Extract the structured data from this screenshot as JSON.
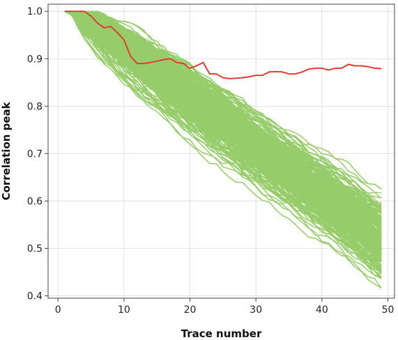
{
  "chart_data": {
    "type": "line",
    "title": "",
    "xlabel": "Trace number",
    "ylabel": "Correlation peak",
    "xlim": [
      -1.5,
      51
    ],
    "ylim": [
      0.395,
      1.015
    ],
    "xticks": [
      0,
      10,
      20,
      30,
      40,
      50
    ],
    "yticks": [
      0.4,
      0.5,
      0.6,
      0.7,
      0.8,
      0.9,
      1.0
    ],
    "xtick_labels": [
      "0",
      "10",
      "20",
      "30",
      "40",
      "50"
    ],
    "ytick_labels": [
      "0.4",
      "0.5",
      "0.6",
      "0.7",
      "0.8",
      "0.9",
      "1.0"
    ],
    "grid": true,
    "legend": "none",
    "colors": {
      "highlight": "#e03c31",
      "others": "#96cd6a"
    },
    "highlight_series": {
      "x": [
        1,
        2,
        3,
        4,
        5,
        6,
        7,
        8,
        9,
        10,
        11,
        12,
        13,
        14,
        15,
        16,
        17,
        18,
        19,
        20,
        21,
        22,
        23,
        24,
        25,
        26,
        27,
        28,
        29,
        30,
        31,
        32,
        33,
        34,
        35,
        36,
        37,
        38,
        39,
        40,
        41,
        42,
        43,
        44,
        45,
        46,
        47,
        48,
        49
      ],
      "values": [
        1.0,
        1.0,
        1.0,
        1.0,
        0.99,
        0.975,
        0.965,
        0.968,
        0.955,
        0.94,
        0.905,
        0.89,
        0.89,
        0.892,
        0.895,
        0.898,
        0.9,
        0.892,
        0.89,
        0.88,
        0.885,
        0.892,
        0.868,
        0.868,
        0.86,
        0.858,
        0.859,
        0.86,
        0.862,
        0.865,
        0.865,
        0.872,
        0.873,
        0.872,
        0.868,
        0.868,
        0.872,
        0.878,
        0.88,
        0.88,
        0.876,
        0.88,
        0.88,
        0.888,
        0.885,
        0.885,
        0.883,
        0.88,
        0.879
      ]
    },
    "background_series": {
      "count": 260,
      "x_range": [
        1,
        49
      ],
      "start_value": 1.0,
      "mean_end_value": 0.5,
      "end_value_range": [
        0.4,
        0.64
      ]
    }
  }
}
